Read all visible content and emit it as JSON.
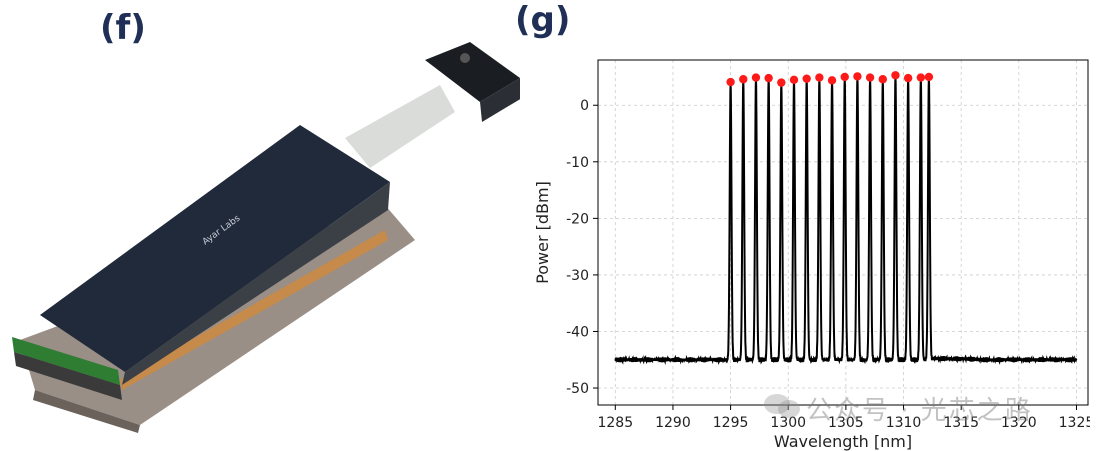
{
  "panels": {
    "left_label": "(f)",
    "right_label": "(g)"
  },
  "module": {
    "logo_text": "Ayar Labs"
  },
  "watermark": {
    "text": "公众号 · 光芯之路"
  },
  "colors": {
    "trace": "#000000",
    "peaks": "#ff1a1a",
    "grid": "#cccccc",
    "label": "#1f2f55"
  },
  "chart_data": {
    "type": "line",
    "title": "",
    "xlabel": "Wavelength [nm]",
    "ylabel": "Power [dBm]",
    "xlim": [
      1283.5,
      1326
    ],
    "ylim": [
      -53,
      8
    ],
    "xticks": [
      1285,
      1290,
      1295,
      1300,
      1305,
      1310,
      1315,
      1320,
      1325
    ],
    "yticks": [
      0,
      -10,
      -20,
      -30,
      -40,
      -50
    ],
    "grid": true,
    "series": [
      {
        "kind": "spectrum",
        "x": [
          1285,
          1287,
          1289,
          1291,
          1293,
          1294.5,
          1295,
          1296.1,
          1297.2,
          1298.3,
          1299.4,
          1300.5,
          1301.6,
          1302.7,
          1303.8,
          1304.9,
          1306.0,
          1307.1,
          1308.2,
          1309.3,
          1310.4,
          1311.5,
          1312.3,
          1314,
          1316,
          1318,
          1320,
          1322,
          1324,
          1325
        ],
        "y": [
          -50.3,
          -50.0,
          -49.6,
          -49.2,
          -48.6,
          -48.0,
          4.1,
          4.6,
          4.9,
          4.8,
          4.0,
          4.5,
          4.7,
          4.9,
          4.4,
          5.0,
          5.1,
          4.9,
          4.6,
          5.3,
          4.8,
          4.9,
          -44.8,
          -44.8,
          -44.9,
          -45.2,
          -45.8,
          -46.5,
          -47.0,
          -47.3
        ]
      },
      {
        "kind": "peaks",
        "x": [
          1295.0,
          1296.1,
          1297.2,
          1298.3,
          1299.4,
          1300.5,
          1301.6,
          1302.7,
          1303.8,
          1304.9,
          1306.0,
          1307.1,
          1308.2,
          1309.3,
          1310.4,
          1311.5,
          1312.2
        ],
        "y": [
          4.1,
          4.6,
          4.9,
          4.8,
          4.0,
          4.5,
          4.7,
          4.9,
          4.4,
          5.0,
          5.1,
          4.9,
          4.6,
          5.3,
          4.8,
          4.9,
          5.0
        ]
      }
    ]
  }
}
